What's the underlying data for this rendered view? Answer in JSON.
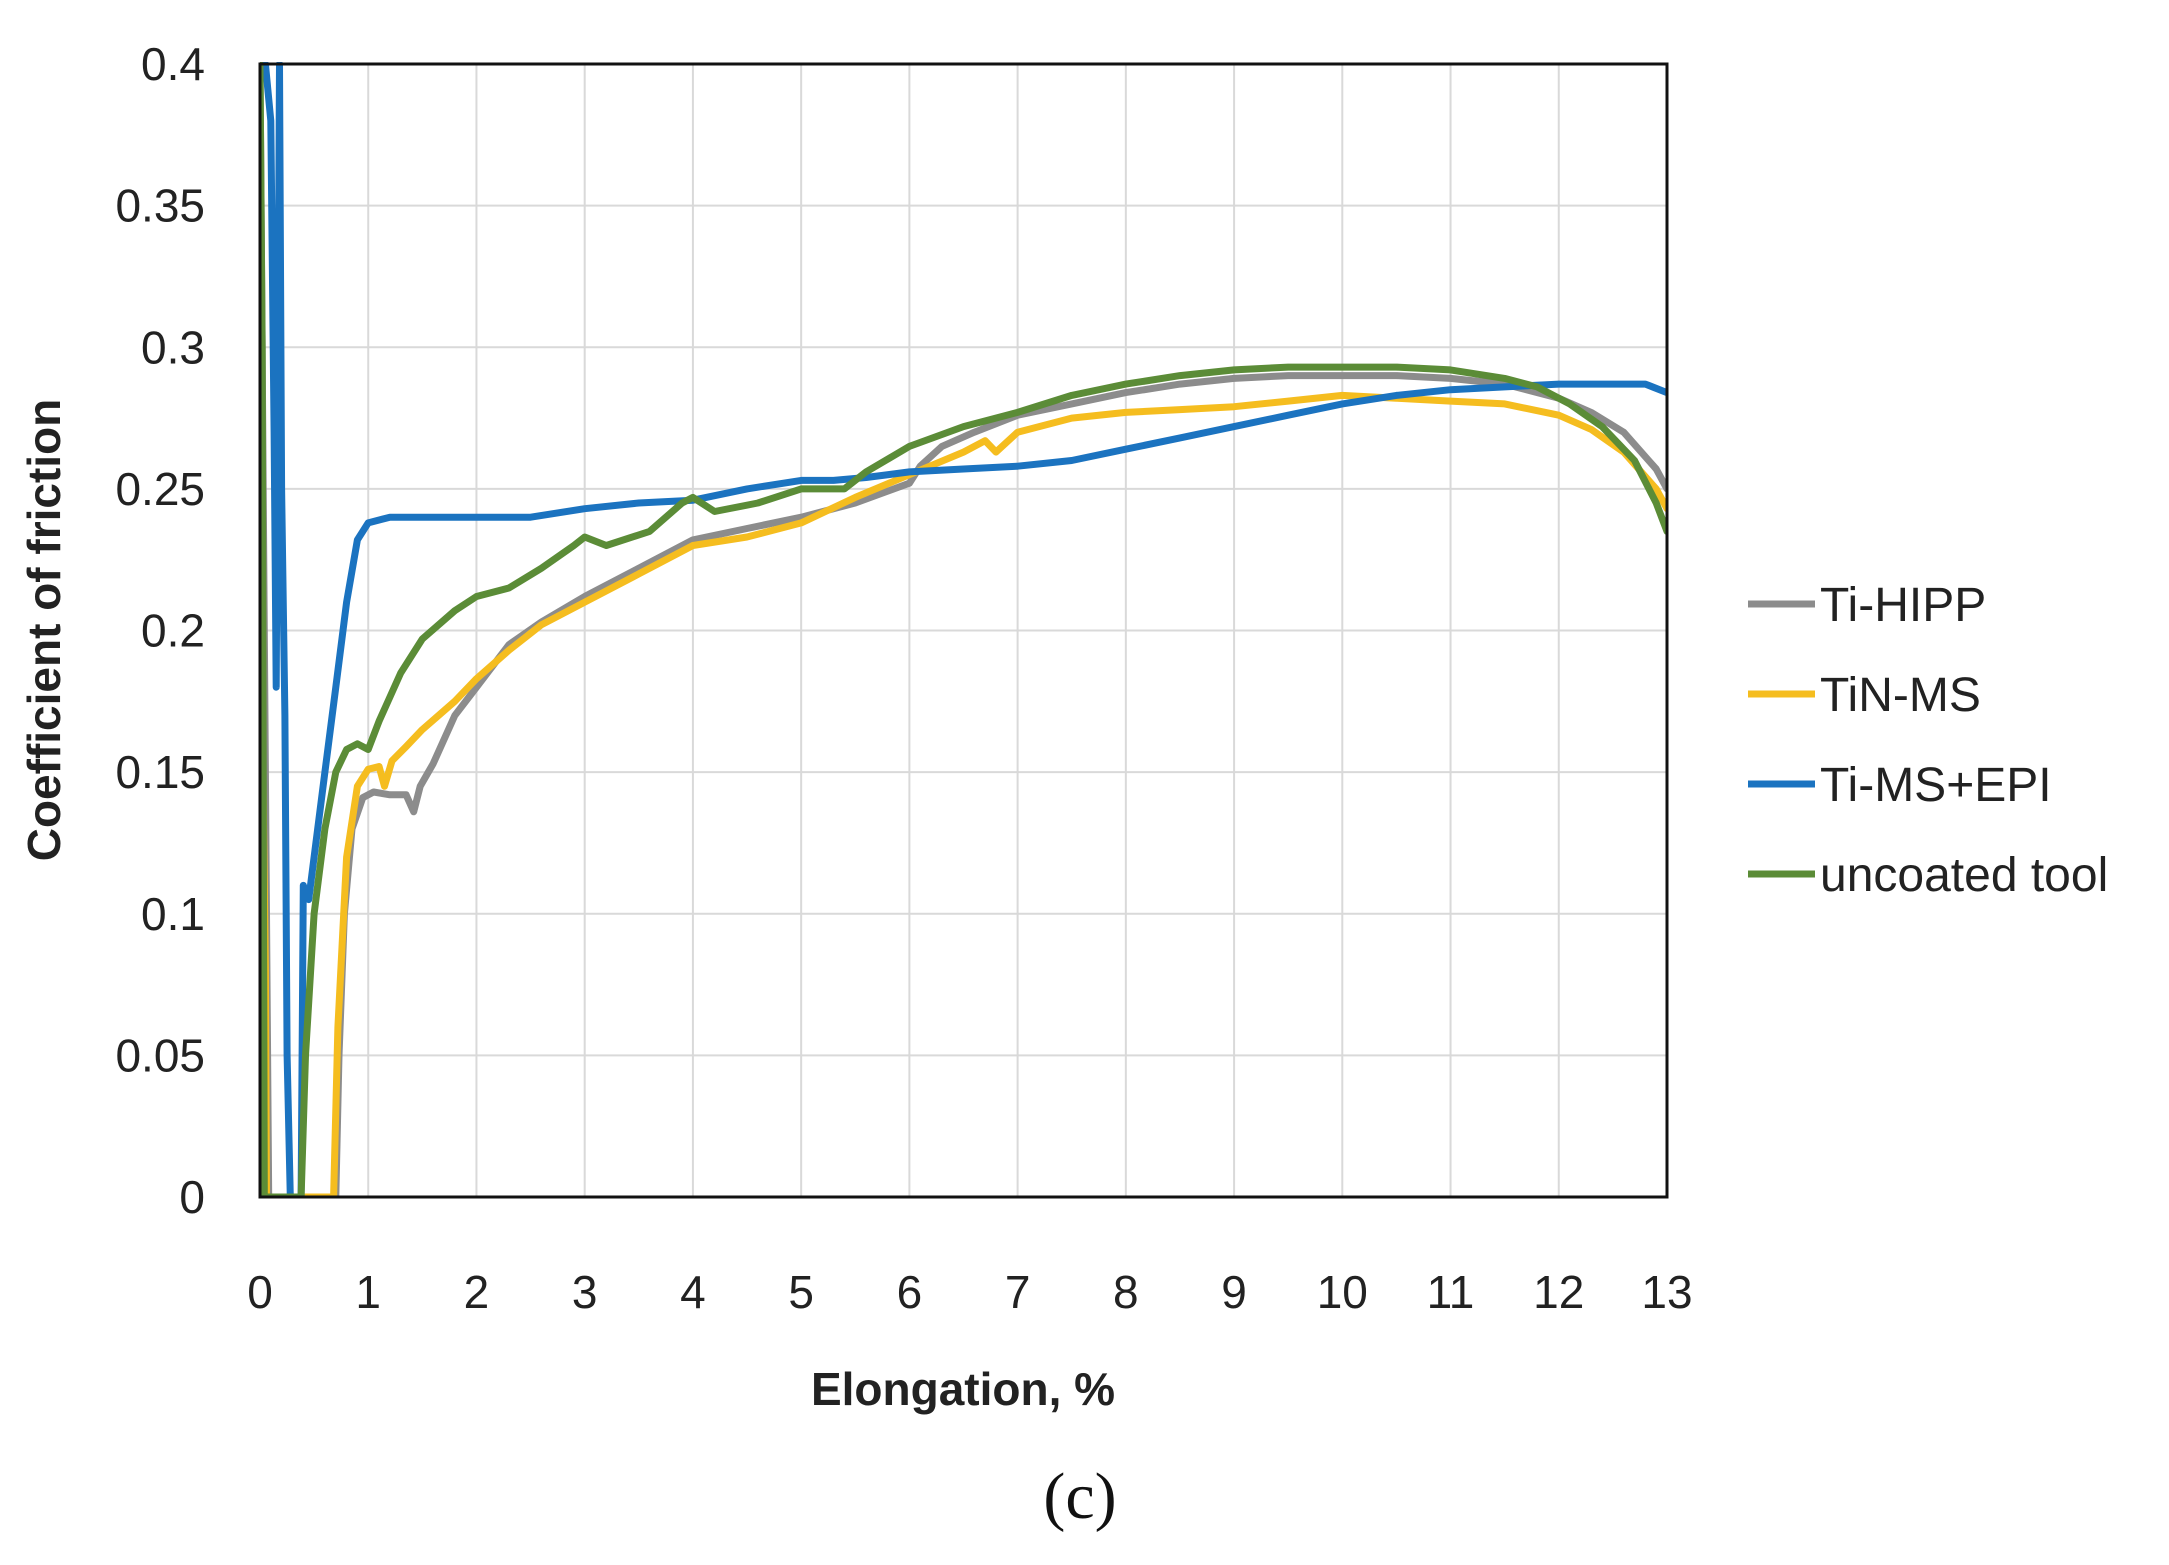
{
  "chart_data": {
    "type": "line",
    "title": "",
    "xlabel": "Elongation, %",
    "ylabel": "Coefficient of friction",
    "panel_label": "(c)",
    "xlim": [
      0,
      13
    ],
    "ylim": [
      0,
      0.4
    ],
    "grid": true,
    "legend_position": "right",
    "xticks": [
      0,
      1,
      2,
      3,
      4,
      5,
      6,
      7,
      8,
      9,
      10,
      11,
      12,
      13
    ],
    "xtick_labels": [
      "0",
      "1",
      "2",
      "3",
      "4",
      "5",
      "6",
      "7",
      "8",
      "9",
      "10",
      "11",
      "12",
      "13"
    ],
    "yticks": [
      0,
      0.05,
      0.1,
      0.15,
      0.2,
      0.25,
      0.3,
      0.35,
      0.4
    ],
    "ytick_labels": [
      "0",
      "0.05",
      "0.1",
      "0.15",
      "0.2",
      "0.25",
      "0.3",
      "0.35",
      "0.4"
    ],
    "series": [
      {
        "name": "Ti-HIPP",
        "color": "#8c8c8c",
        "points": [
          [
            0,
            0.4
          ],
          [
            0.03,
            0.25
          ],
          [
            0.06,
            0.1
          ],
          [
            0.08,
            0.0
          ],
          [
            0.7,
            0.0
          ],
          [
            0.73,
            0.05
          ],
          [
            0.78,
            0.1
          ],
          [
            0.85,
            0.13
          ],
          [
            0.95,
            0.141
          ],
          [
            1.05,
            0.143
          ],
          [
            1.2,
            0.142
          ],
          [
            1.35,
            0.142
          ],
          [
            1.42,
            0.136
          ],
          [
            1.48,
            0.145
          ],
          [
            1.6,
            0.153
          ],
          [
            1.8,
            0.17
          ],
          [
            2.0,
            0.18
          ],
          [
            2.3,
            0.195
          ],
          [
            2.6,
            0.203
          ],
          [
            3.0,
            0.212
          ],
          [
            3.5,
            0.222
          ],
          [
            4.0,
            0.232
          ],
          [
            4.5,
            0.236
          ],
          [
            5.0,
            0.24
          ],
          [
            5.5,
            0.245
          ],
          [
            6.0,
            0.252
          ],
          [
            6.1,
            0.258
          ],
          [
            6.3,
            0.265
          ],
          [
            6.6,
            0.27
          ],
          [
            7.0,
            0.276
          ],
          [
            7.5,
            0.28
          ],
          [
            8.0,
            0.284
          ],
          [
            8.5,
            0.287
          ],
          [
            9.0,
            0.289
          ],
          [
            9.5,
            0.29
          ],
          [
            10.0,
            0.29
          ],
          [
            10.5,
            0.29
          ],
          [
            11.0,
            0.289
          ],
          [
            11.5,
            0.287
          ],
          [
            12.0,
            0.282
          ],
          [
            12.3,
            0.277
          ],
          [
            12.6,
            0.27
          ],
          [
            12.9,
            0.257
          ],
          [
            13.0,
            0.25
          ]
        ]
      },
      {
        "name": "TiN-MS",
        "color": "#f5bd1f",
        "points": [
          [
            0,
            0.4
          ],
          [
            0.01,
            0.2
          ],
          [
            0.03,
            0.14
          ],
          [
            0.05,
            0.08
          ],
          [
            0.06,
            0.0
          ],
          [
            0.68,
            0.0
          ],
          [
            0.72,
            0.06
          ],
          [
            0.8,
            0.12
          ],
          [
            0.9,
            0.145
          ],
          [
            1.0,
            0.151
          ],
          [
            1.1,
            0.152
          ],
          [
            1.15,
            0.145
          ],
          [
            1.22,
            0.154
          ],
          [
            1.35,
            0.159
          ],
          [
            1.5,
            0.165
          ],
          [
            1.8,
            0.175
          ],
          [
            2.0,
            0.183
          ],
          [
            2.3,
            0.193
          ],
          [
            2.6,
            0.202
          ],
          [
            3.0,
            0.21
          ],
          [
            3.5,
            0.22
          ],
          [
            4.0,
            0.23
          ],
          [
            4.5,
            0.233
          ],
          [
            5.0,
            0.238
          ],
          [
            5.5,
            0.247
          ],
          [
            6.0,
            0.255
          ],
          [
            6.5,
            0.263
          ],
          [
            6.7,
            0.267
          ],
          [
            6.8,
            0.263
          ],
          [
            7.0,
            0.27
          ],
          [
            7.5,
            0.275
          ],
          [
            8.0,
            0.277
          ],
          [
            8.5,
            0.278
          ],
          [
            9.0,
            0.279
          ],
          [
            9.5,
            0.281
          ],
          [
            10.0,
            0.283
          ],
          [
            10.5,
            0.282
          ],
          [
            11.0,
            0.281
          ],
          [
            11.5,
            0.28
          ],
          [
            12.0,
            0.276
          ],
          [
            12.3,
            0.271
          ],
          [
            12.6,
            0.263
          ],
          [
            12.9,
            0.25
          ],
          [
            13.0,
            0.243
          ]
        ]
      },
      {
        "name": "Ti-MS+EPI",
        "color": "#1b73c0",
        "points": [
          [
            0,
            0.4
          ],
          [
            0.05,
            0.4
          ],
          [
            0.1,
            0.38
          ],
          [
            0.13,
            0.27
          ],
          [
            0.15,
            0.18
          ],
          [
            0.18,
            0.4
          ],
          [
            0.2,
            0.25
          ],
          [
            0.23,
            0.17
          ],
          [
            0.25,
            0.05
          ],
          [
            0.28,
            0.0
          ],
          [
            0.38,
            0.0
          ],
          [
            0.4,
            0.11
          ],
          [
            0.45,
            0.105
          ],
          [
            0.5,
            0.12
          ],
          [
            0.6,
            0.15
          ],
          [
            0.7,
            0.18
          ],
          [
            0.8,
            0.21
          ],
          [
            0.9,
            0.232
          ],
          [
            1.0,
            0.238
          ],
          [
            1.2,
            0.24
          ],
          [
            1.5,
            0.24
          ],
          [
            2.0,
            0.24
          ],
          [
            2.5,
            0.24
          ],
          [
            3.0,
            0.243
          ],
          [
            3.5,
            0.245
          ],
          [
            4.0,
            0.246
          ],
          [
            4.5,
            0.25
          ],
          [
            5.0,
            0.253
          ],
          [
            5.3,
            0.253
          ],
          [
            5.6,
            0.254
          ],
          [
            6.0,
            0.256
          ],
          [
            6.5,
            0.257
          ],
          [
            7.0,
            0.258
          ],
          [
            7.5,
            0.26
          ],
          [
            8.0,
            0.264
          ],
          [
            8.5,
            0.268
          ],
          [
            9.0,
            0.272
          ],
          [
            9.5,
            0.276
          ],
          [
            10.0,
            0.28
          ],
          [
            10.5,
            0.283
          ],
          [
            11.0,
            0.285
          ],
          [
            11.5,
            0.286
          ],
          [
            12.0,
            0.287
          ],
          [
            12.5,
            0.287
          ],
          [
            12.8,
            0.287
          ],
          [
            13.0,
            0.284
          ]
        ]
      },
      {
        "name": "uncoated tool",
        "color": "#5b8c37",
        "points": [
          [
            0,
            0.4
          ],
          [
            0.02,
            0.3
          ],
          [
            0.03,
            0.15
          ],
          [
            0.04,
            0.0
          ],
          [
            0.38,
            0.0
          ],
          [
            0.42,
            0.05
          ],
          [
            0.5,
            0.1
          ],
          [
            0.6,
            0.13
          ],
          [
            0.7,
            0.15
          ],
          [
            0.8,
            0.158
          ],
          [
            0.9,
            0.16
          ],
          [
            1.0,
            0.158
          ],
          [
            1.1,
            0.168
          ],
          [
            1.3,
            0.185
          ],
          [
            1.5,
            0.197
          ],
          [
            1.8,
            0.207
          ],
          [
            2.0,
            0.212
          ],
          [
            2.3,
            0.215
          ],
          [
            2.6,
            0.222
          ],
          [
            2.9,
            0.23
          ],
          [
            3.0,
            0.233
          ],
          [
            3.2,
            0.23
          ],
          [
            3.6,
            0.235
          ],
          [
            3.9,
            0.245
          ],
          [
            4.0,
            0.247
          ],
          [
            4.2,
            0.242
          ],
          [
            4.6,
            0.245
          ],
          [
            5.0,
            0.25
          ],
          [
            5.4,
            0.25
          ],
          [
            5.6,
            0.256
          ],
          [
            6.0,
            0.265
          ],
          [
            6.5,
            0.272
          ],
          [
            7.0,
            0.277
          ],
          [
            7.5,
            0.283
          ],
          [
            8.0,
            0.287
          ],
          [
            8.5,
            0.29
          ],
          [
            9.0,
            0.292
          ],
          [
            9.5,
            0.293
          ],
          [
            10.0,
            0.293
          ],
          [
            10.5,
            0.293
          ],
          [
            11.0,
            0.292
          ],
          [
            11.5,
            0.289
          ],
          [
            11.8,
            0.286
          ],
          [
            12.1,
            0.28
          ],
          [
            12.4,
            0.272
          ],
          [
            12.7,
            0.26
          ],
          [
            12.9,
            0.245
          ],
          [
            13.0,
            0.235
          ]
        ]
      }
    ]
  }
}
